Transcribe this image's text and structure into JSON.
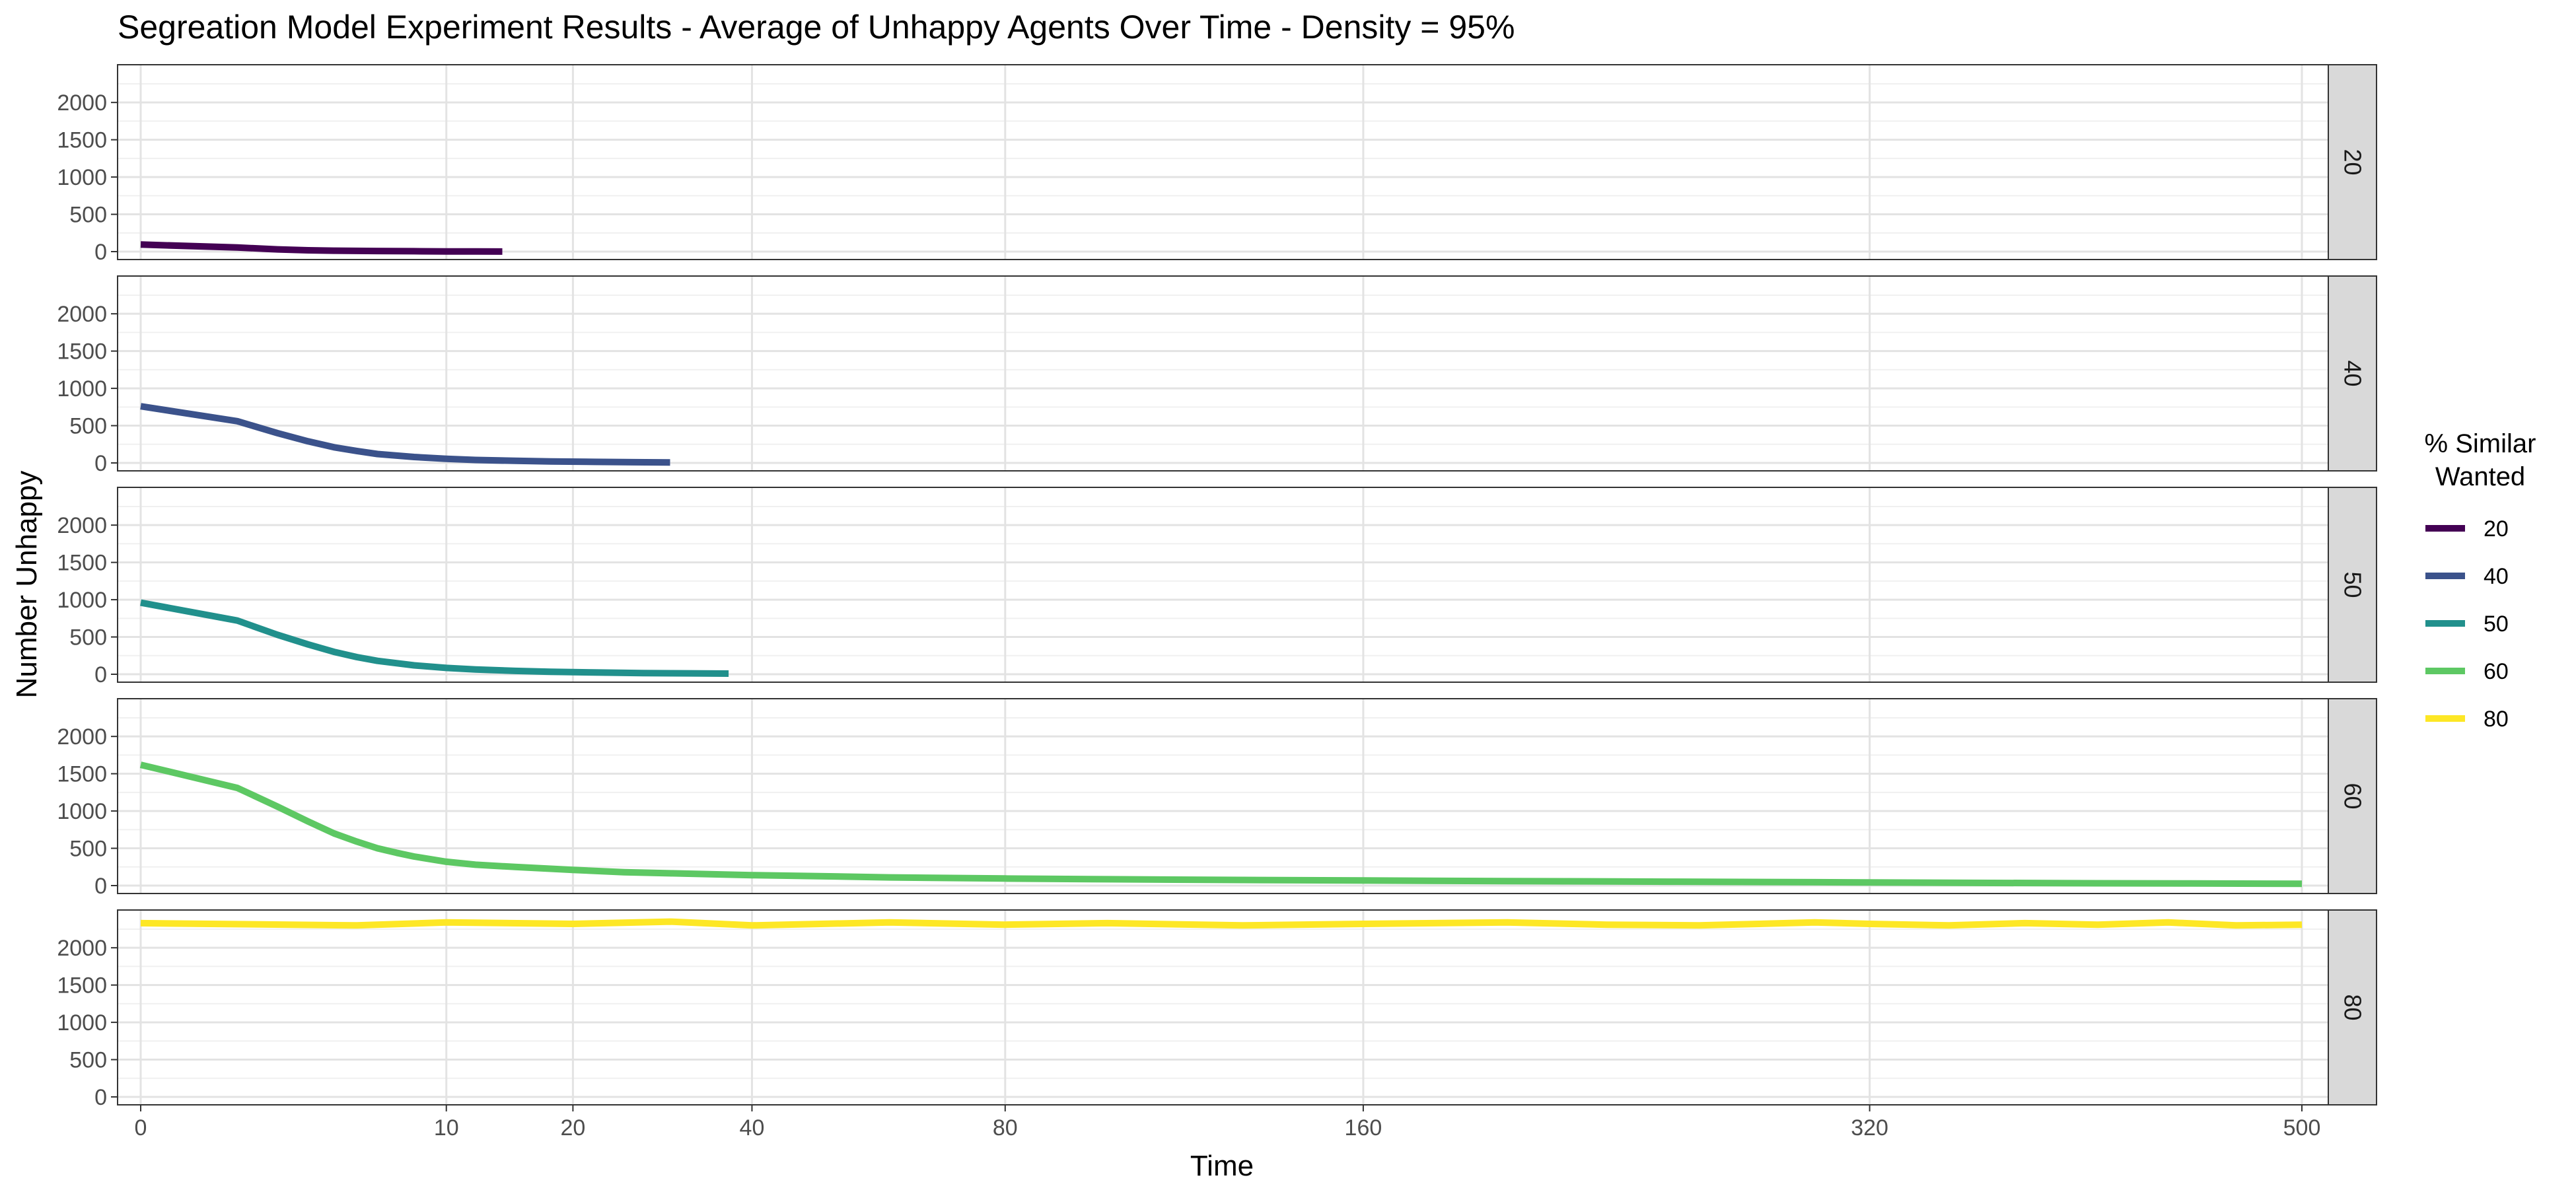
{
  "chart_data": {
    "type": "line",
    "title": "Segreation Model Experiment Results - Average of Unhappy Agents Over Time - Density = 95%",
    "xlabel": "Time",
    "ylabel": "Number Unhappy",
    "x_scale": "sqrt",
    "xlim": [
      0,
      500
    ],
    "ylim": [
      0,
      2400
    ],
    "x_ticks": [
      0,
      10,
      20,
      40,
      80,
      160,
      320,
      500
    ],
    "y_ticks": [
      0,
      500,
      1000,
      1500,
      2000
    ],
    "grid": true,
    "facet_by": "% Similar Wanted",
    "legend": {
      "title_lines": [
        "% Similar",
        "Wanted"
      ],
      "placement": "right"
    },
    "series": [
      {
        "name": "20",
        "color": "#440154",
        "points": [
          [
            0,
            95
          ],
          [
            1,
            55
          ],
          [
            2,
            30
          ],
          [
            3,
            18
          ],
          [
            4,
            12
          ],
          [
            6,
            8
          ],
          [
            8,
            5
          ],
          [
            10,
            3
          ],
          [
            12,
            2
          ],
          [
            14,
            1
          ]
        ]
      },
      {
        "name": "40",
        "color": "#3B528B",
        "points": [
          [
            0,
            760
          ],
          [
            1,
            560
          ],
          [
            2,
            400
          ],
          [
            3,
            290
          ],
          [
            4,
            210
          ],
          [
            5,
            160
          ],
          [
            6,
            120
          ],
          [
            8,
            80
          ],
          [
            10,
            55
          ],
          [
            12,
            40
          ],
          [
            15,
            28
          ],
          [
            18,
            20
          ],
          [
            22,
            14
          ],
          [
            26,
            10
          ],
          [
            30,
            7
          ]
        ]
      },
      {
        "name": "50",
        "color": "#21908C",
        "points": [
          [
            0,
            960
          ],
          [
            1,
            720
          ],
          [
            2,
            530
          ],
          [
            3,
            400
          ],
          [
            4,
            300
          ],
          [
            5,
            230
          ],
          [
            6,
            180
          ],
          [
            8,
            120
          ],
          [
            10,
            85
          ],
          [
            12,
            65
          ],
          [
            15,
            45
          ],
          [
            18,
            33
          ],
          [
            22,
            24
          ],
          [
            27,
            16
          ],
          [
            32,
            12
          ],
          [
            37,
            9
          ]
        ]
      },
      {
        "name": "60",
        "color": "#5DC863",
        "points": [
          [
            0,
            1620
          ],
          [
            1,
            1310
          ],
          [
            2,
            1060
          ],
          [
            3,
            860
          ],
          [
            4,
            700
          ],
          [
            5,
            590
          ],
          [
            6,
            500
          ],
          [
            7,
            440
          ],
          [
            8,
            390
          ],
          [
            10,
            320
          ],
          [
            12,
            280
          ],
          [
            15,
            250
          ],
          [
            20,
            210
          ],
          [
            25,
            180
          ],
          [
            30,
            165
          ],
          [
            40,
            140
          ],
          [
            50,
            125
          ],
          [
            60,
            110
          ],
          [
            80,
            95
          ],
          [
            100,
            85
          ],
          [
            130,
            75
          ],
          [
            160,
            68
          ],
          [
            200,
            60
          ],
          [
            250,
            52
          ],
          [
            300,
            45
          ],
          [
            350,
            38
          ],
          [
            400,
            32
          ],
          [
            450,
            28
          ],
          [
            500,
            25
          ]
        ]
      },
      {
        "name": "80",
        "color": "#FDE725",
        "points": [
          [
            0,
            2330
          ],
          [
            5,
            2300
          ],
          [
            10,
            2340
          ],
          [
            20,
            2320
          ],
          [
            30,
            2350
          ],
          [
            40,
            2300
          ],
          [
            60,
            2340
          ],
          [
            80,
            2310
          ],
          [
            100,
            2330
          ],
          [
            130,
            2300
          ],
          [
            160,
            2320
          ],
          [
            200,
            2340
          ],
          [
            230,
            2310
          ],
          [
            260,
            2300
          ],
          [
            300,
            2340
          ],
          [
            320,
            2320
          ],
          [
            350,
            2300
          ],
          [
            380,
            2330
          ],
          [
            410,
            2310
          ],
          [
            440,
            2340
          ],
          [
            470,
            2300
          ],
          [
            500,
            2310
          ]
        ]
      }
    ]
  }
}
